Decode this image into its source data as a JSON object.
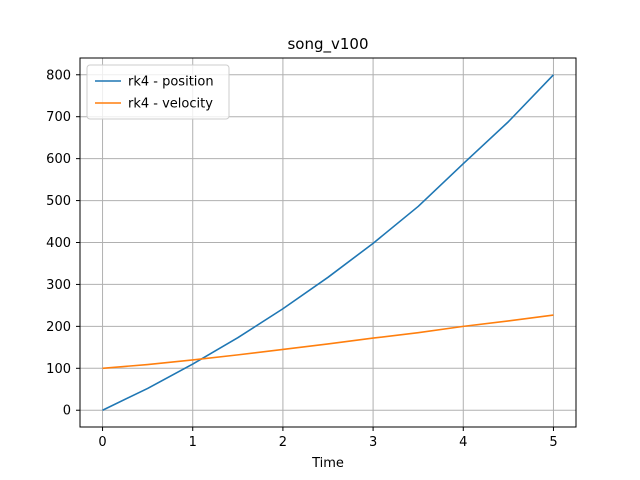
{
  "chart_data": {
    "type": "line",
    "title": "song_v100",
    "xlabel": "Time",
    "ylabel": "",
    "xlim": [
      -0.25,
      5.25
    ],
    "ylim": [
      -40,
      840
    ],
    "xticks": [
      0,
      1,
      2,
      3,
      4,
      5
    ],
    "yticks": [
      0,
      100,
      200,
      300,
      400,
      500,
      600,
      700,
      800
    ],
    "grid": true,
    "legend_position": "top-left",
    "x": [
      0,
      0.5,
      1,
      1.5,
      2,
      2.5,
      3,
      3.5,
      4,
      4.5,
      5
    ],
    "series": [
      {
        "name": "rk4 - position",
        "color": "#1f77b4",
        "values": [
          0,
          52,
          110,
          173,
          242,
          317,
          398,
          486,
          588,
          688,
          800
        ]
      },
      {
        "name": "rk4 - velocity",
        "color": "#ff7f0e",
        "values": [
          100,
          109,
          120,
          132,
          145,
          158,
          172,
          185,
          200,
          213,
          227
        ]
      }
    ]
  }
}
